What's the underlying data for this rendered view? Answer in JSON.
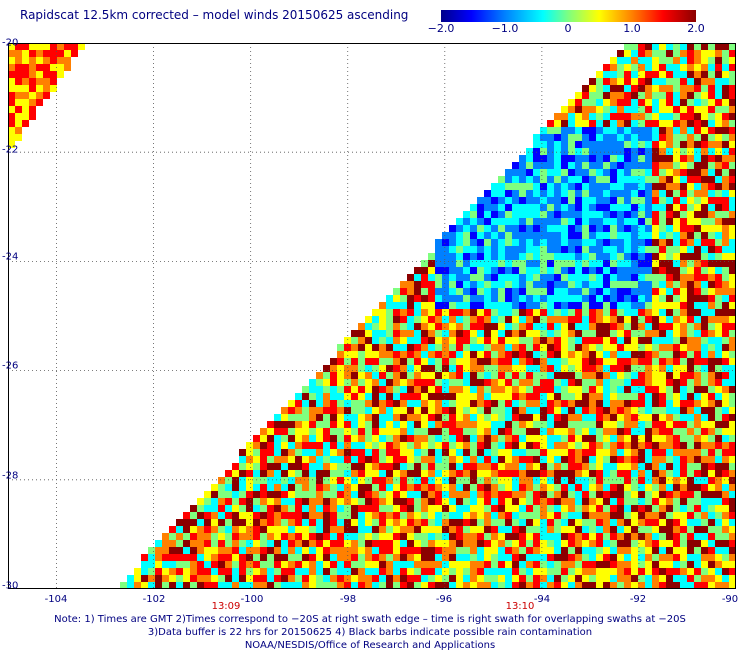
{
  "title": "Rapidscat 12.5km corrected – model winds 20150625 ascending",
  "colorbar": {
    "labels": [
      "−2.0",
      "−1.0",
      "0",
      "1.0",
      "2.0"
    ],
    "values": [
      -2.0,
      -1.0,
      0,
      1.0,
      2.0
    ],
    "colors": [
      "#00008b",
      "#0000ff",
      "#0080ff",
      "#00ffff",
      "#7fff7f",
      "#ffff00",
      "#ff8000",
      "#ff0000",
      "#8b0000"
    ]
  },
  "axes": {
    "lat_labels": [
      "-20",
      "-22",
      "-24",
      "-26",
      "-28",
      "-30"
    ],
    "lat_values": [
      -20,
      -22,
      -24,
      -26,
      -28,
      -30
    ],
    "lon_labels": [
      "-104",
      "-102",
      "-100",
      "-98",
      "-96",
      "-94",
      "-92",
      "-90"
    ],
    "lon_values": [
      -104,
      -102,
      -100,
      -98,
      -96,
      -94,
      -92,
      -90
    ],
    "lat_range": [
      -30,
      -20
    ],
    "lon_range": [
      -105,
      -90
    ]
  },
  "time_labels": [
    {
      "text": "13:09",
      "lon": -100
    },
    {
      "text": "13:10",
      "lon": -94
    }
  ],
  "notes": [
    "Note: 1) Times are GMT 2)Times correspond to −20S at right swath edge – time is right swath for overlapping swaths at −20S",
    "3)Data buffer is 22 hrs for 20150625 4) Black barbs indicate possible rain contamination",
    "NOAA/NESDIS/Office of Research and Applications"
  ]
}
